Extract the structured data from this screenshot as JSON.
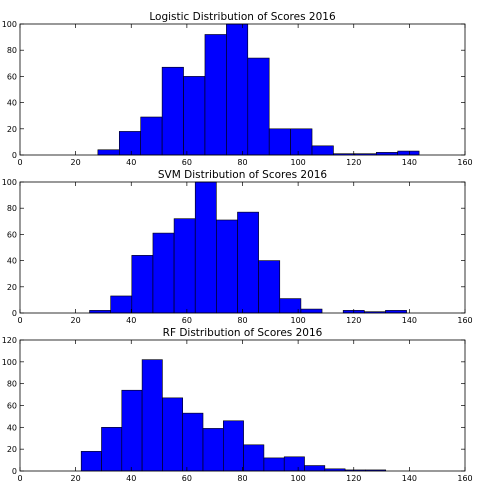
{
  "figure": {
    "background": "#ffffff",
    "bar_color": "#0000ff",
    "edge_color": "#000000"
  },
  "chart_data": [
    {
      "type": "bar",
      "title": "Logistic Distribution of Scores 2016",
      "xlabel": "",
      "ylabel": "",
      "xlim": [
        0,
        160
      ],
      "ylim": [
        0,
        100
      ],
      "xticks": [
        0,
        20,
        40,
        60,
        80,
        100,
        120,
        140,
        160
      ],
      "yticks": [
        0,
        20,
        40,
        60,
        80,
        100
      ],
      "bin_edges": [
        28,
        35.7,
        43.4,
        51.1,
        58.8,
        66.5,
        74.2,
        81.9,
        89.6,
        97.3,
        105,
        112.7,
        120.4,
        128.1,
        135.8,
        143.5
      ],
      "values": [
        4,
        18,
        29,
        67,
        60,
        92,
        100,
        74,
        20,
        20,
        7,
        1,
        1,
        2,
        3
      ],
      "grid": false
    },
    {
      "type": "bar",
      "title": "SVM Distribution of Scores 2016",
      "xlabel": "",
      "ylabel": "",
      "xlim": [
        0,
        160
      ],
      "ylim": [
        0,
        100
      ],
      "xticks": [
        0,
        20,
        40,
        60,
        80,
        100,
        120,
        140,
        160
      ],
      "yticks": [
        0,
        20,
        40,
        60,
        80,
        100
      ],
      "bin_edges": [
        25,
        32.6,
        40.2,
        47.8,
        55.4,
        63,
        70.6,
        78.2,
        85.8,
        93.4,
        101,
        108.6,
        116.2,
        123.8,
        131.4,
        139
      ],
      "values": [
        2,
        13,
        44,
        61,
        72,
        100,
        71,
        77,
        40,
        11,
        3,
        0,
        2,
        1,
        2
      ],
      "grid": false
    },
    {
      "type": "bar",
      "title": "RF Distribution of Scores 2016",
      "xlabel": "",
      "ylabel": "",
      "xlim": [
        0,
        160
      ],
      "ylim": [
        0,
        120
      ],
      "xticks": [
        0,
        20,
        40,
        60,
        80,
        100,
        120,
        140,
        160
      ],
      "yticks": [
        0,
        20,
        40,
        60,
        80,
        100,
        120
      ],
      "bin_edges": [
        22,
        29.3,
        36.6,
        43.9,
        51.2,
        58.5,
        65.8,
        73.1,
        80.4,
        87.7,
        95,
        102.3,
        109.6,
        116.9,
        124.2,
        131.5
      ],
      "values": [
        18,
        40,
        74,
        102,
        67,
        53,
        39,
        46,
        24,
        12,
        13,
        5,
        2,
        1,
        1
      ],
      "grid": false
    }
  ]
}
